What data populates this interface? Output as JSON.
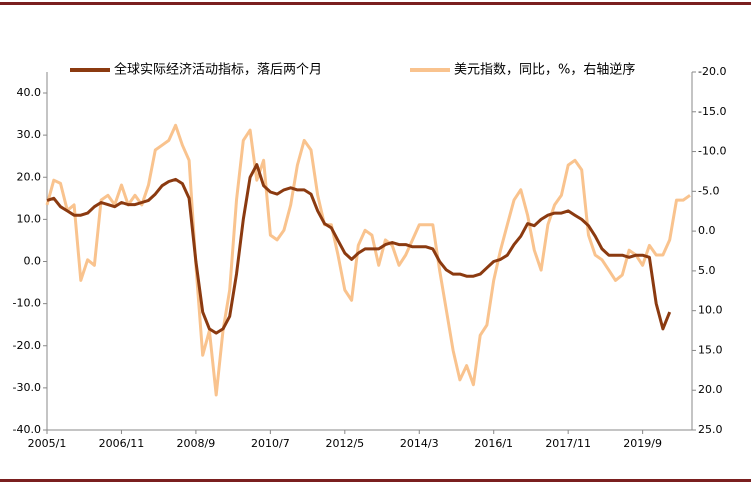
{
  "chart_data": {
    "type": "line",
    "categories": [
      "2005/1",
      null,
      null,
      null,
      null,
      null,
      null,
      null,
      null,
      null,
      null,
      "2006/11",
      null,
      null,
      null,
      null,
      null,
      null,
      null,
      null,
      null,
      null,
      "2008/9",
      null,
      null,
      null,
      null,
      null,
      null,
      null,
      null,
      null,
      null,
      "2010/7",
      null,
      null,
      null,
      null,
      null,
      null,
      null,
      null,
      null,
      null,
      "2012/5",
      null,
      null,
      null,
      null,
      null,
      null,
      null,
      null,
      null,
      null,
      "2014/3",
      null,
      null,
      null,
      null,
      null,
      null,
      null,
      null,
      null,
      null,
      "2016/1",
      null,
      null,
      null,
      null,
      null,
      null,
      null,
      null,
      null,
      null,
      "2017/11",
      null,
      null,
      null,
      null,
      null,
      null,
      null,
      null,
      null,
      null,
      "2019/9",
      null,
      null,
      null,
      null,
      null,
      null,
      null
    ],
    "series": [
      {
        "name": "全球实际经济活动指标，落后两个月",
        "color": "#8b3a10",
        "axis": "y",
        "values": [
          14.5,
          15,
          13,
          12,
          11,
          11,
          11.5,
          13,
          14,
          13.5,
          13,
          14,
          13.5,
          13.5,
          14,
          14.5,
          16,
          18,
          19,
          19.5,
          18.5,
          15,
          0,
          -12,
          -16,
          -17,
          -16,
          -13,
          -3,
          10,
          20,
          23,
          18,
          16.5,
          16,
          17,
          17.5,
          17,
          17,
          16,
          12,
          9,
          8,
          5,
          2,
          0.5,
          2,
          3,
          3,
          3,
          4,
          4.5,
          4,
          4,
          3.5,
          3.5,
          3.5,
          3,
          0,
          -2,
          -3,
          -3,
          -3.5,
          -3.5,
          -3,
          -1.5,
          0,
          0.5,
          1.5,
          4,
          6,
          9,
          8.5,
          10,
          11,
          11.5,
          11.5,
          12,
          11,
          10,
          8.5,
          6,
          3,
          1.5,
          1.5,
          1.5,
          1,
          1.5,
          1.5,
          1,
          -10,
          -16,
          -12,
          null,
          null,
          null
        ]
      },
      {
        "name": "美元指数，同比，%，右轴逆序",
        "color": "#f9c38e",
        "axis": "y2",
        "values": [
          -3.3,
          -6.4,
          -6,
          -2.6,
          -3.3,
          6.2,
          3.6,
          4.3,
          -3.9,
          -4.5,
          -3.3,
          -5.8,
          -3.3,
          -4.5,
          -3.3,
          -5.8,
          -10.2,
          -10.8,
          -11.4,
          -13.3,
          -10.8,
          -8.9,
          4.3,
          15.6,
          12.5,
          20.6,
          12.5,
          7.4,
          -3.9,
          -11.4,
          -12.7,
          -6.4,
          -8.9,
          0.5,
          1.1,
          -0.1,
          -3.3,
          -8.3,
          -11.4,
          -10.2,
          -4.5,
          -0.8,
          -0.8,
          3,
          7.4,
          8.7,
          1.8,
          -0.1,
          0.5,
          4.3,
          1.1,
          1.8,
          4.3,
          3,
          1.1,
          -0.8,
          -0.8,
          -0.8,
          4.9,
          9.9,
          15,
          18.7,
          16.9,
          19.3,
          13.1,
          11.8,
          6.2,
          2.4,
          -0.8,
          -3.9,
          -5.2,
          -2,
          2.4,
          4.9,
          -0.8,
          -3.3,
          -4.5,
          -8.3,
          -8.9,
          -7.7,
          0.5,
          3,
          3.6,
          4.9,
          6.2,
          5.5,
          2.4,
          3,
          4.3,
          1.8,
          3,
          3,
          1.1,
          -3.9,
          -3.9,
          -4.5
        ]
      }
    ],
    "ylim": [
      -40,
      40
    ],
    "yticks": [
      {
        "value": 40,
        "label": "40.0"
      },
      {
        "value": 30,
        "label": "30.0"
      },
      {
        "value": 20,
        "label": "20.0"
      },
      {
        "value": 10,
        "label": "10.0"
      },
      {
        "value": 0,
        "label": "0.0"
      },
      {
        "value": -10,
        "label": "-10.0"
      },
      {
        "value": -20,
        "label": "-20.0"
      },
      {
        "value": -30,
        "label": "-30.0"
      },
      {
        "value": -40,
        "label": "-40.0"
      }
    ],
    "y2lim": [
      -20,
      25
    ],
    "y2ticks": [
      {
        "value": -20,
        "label": "-20.0"
      },
      {
        "value": -15,
        "label": "-15.0"
      },
      {
        "value": -10,
        "label": "-10.0"
      },
      {
        "value": -5,
        "label": "-5.0"
      },
      {
        "value": 0,
        "label": "0.0"
      },
      {
        "value": 5,
        "label": "5.0"
      },
      {
        "value": 10,
        "label": "10.0"
      },
      {
        "value": 15,
        "label": "15.0"
      },
      {
        "value": 20,
        "label": "20.0"
      },
      {
        "value": 25,
        "label": "25.0"
      }
    ],
    "y2_reversed": true,
    "grid": false
  }
}
